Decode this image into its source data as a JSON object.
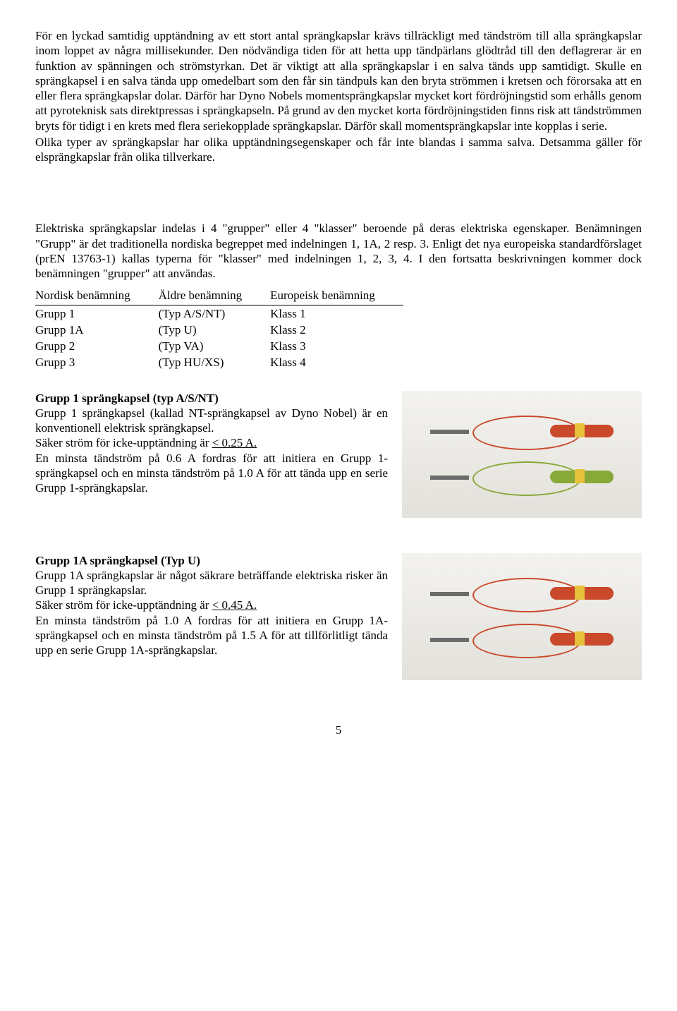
{
  "para1": "För en lyckad samtidig upptändning av ett stort antal sprängkapslar krävs tillräckligt med tändström till alla sprängkapslar inom loppet av några millisekunder. Den nödvändiga tiden för att hetta upp tändpärlans glödtråd till den deflagrerar är en funktion av spänningen och strömstyrkan. Det är viktigt att alla sprängkapslar i en salva tänds upp samtidigt. Skulle en sprängkapsel i en salva tända upp omedelbart som den får sin tändpuls kan den bryta strömmen i kretsen och förorsaka att en eller flera sprängkapslar dolar. Därför har Dyno Nobels momentsprängkapslar mycket kort fördröjningstid som erhålls genom att pyroteknisk sats direktpressas i sprängkapseln. På grund av den mycket korta fördröjningstiden finns risk att tändströmmen bryts för tidigt i en krets med flera seriekopplade sprängkapslar. Därför skall momentsprängkapslar inte kopplas i serie.",
  "para1b": "Olika typer av sprängkapslar har olika upptändningsegenskaper och får inte blandas i samma salva. Detsamma gäller för elsprängkapslar från olika tillverkare.",
  "para2": "Elektriska sprängkapslar indelas i 4 \"grupper\" eller 4 \"klasser\" beroende på deras elektriska egenskaper. Benämningen \"Grupp\" är det traditionella nordiska begreppet med indelningen 1, 1A, 2 resp. 3. Enligt det nya europeiska standardförslaget (prEN 13763-1) kallas typerna för \"klasser\" med indelningen 1, 2, 3, 4. I den fortsatta beskrivningen kommer dock benämningen \"grupper\" att användas.",
  "table": {
    "headers": [
      "Nordisk benämning",
      "Äldre benämning",
      "Europeisk benämning"
    ],
    "rows": [
      [
        "Grupp 1",
        "(Typ A/S/NT)",
        "Klass 1"
      ],
      [
        "Grupp 1A",
        "(Typ U)",
        "Klass 2"
      ],
      [
        "Grupp 2",
        "(Typ VA)",
        "Klass 3"
      ],
      [
        "Grupp 3",
        "(Typ HU/XS)",
        "Klass 4"
      ]
    ]
  },
  "grupp1": {
    "title": "Grupp 1 sprängkapsel (typ A/S/NT)",
    "body": "Grupp 1 sprängkapsel (kallad NT-sprängkapsel av Dyno Nobel) är en konventionell elektrisk sprängkapsel.",
    "line1": "Säker ström för icke-upptändning är ",
    "line1u": "< 0.25 A.",
    "line2": "En minsta tändström på 0.6 A fordras för att initiera en Grupp 1-sprängkapsel och en minsta tändström på 1.0 A för att tända upp en serie Grupp 1-sprängkapslar.",
    "colors": {
      "top": "#c9492a",
      "bottom": "#88a838"
    }
  },
  "grupp1a": {
    "title": "Grupp 1A sprängkapsel (Typ U)",
    "body": "Grupp 1A sprängkapslar är något säkrare beträffande elektriska risker än Grupp 1 sprängkapslar.",
    "line1": "Säker ström för icke-upptändning är ",
    "line1u": "< 0.45 A.",
    "line2": "En minsta tändström på 1.0 A fordras för att initiera en Grupp 1A-sprängkapsel och en minsta tändström på 1.5 A för att tillförlitligt tända upp en serie Grupp 1A-sprängkapslar.",
    "colors": {
      "top": "#c9492a",
      "bottom": "#c9492a"
    }
  },
  "pagenum": "5"
}
